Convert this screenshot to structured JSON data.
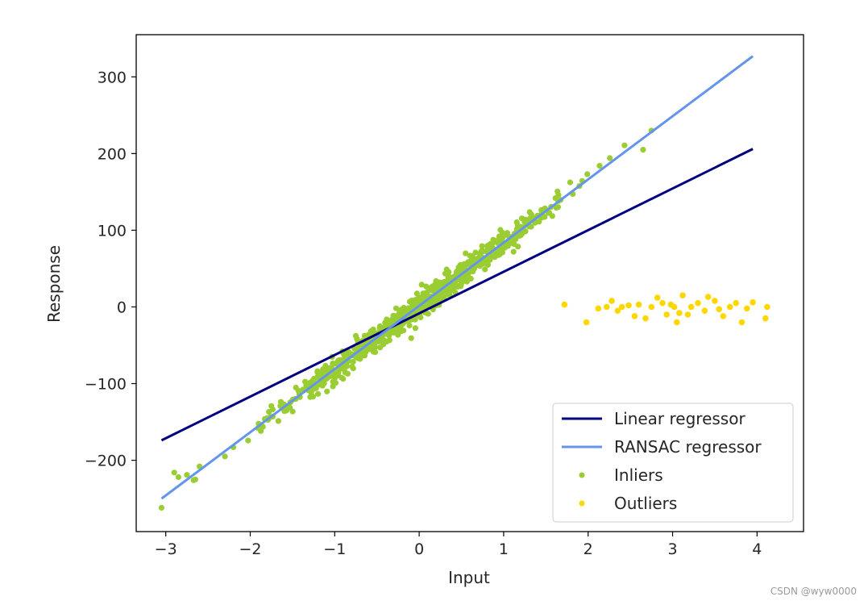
{
  "chart_data": {
    "type": "scatter",
    "title": "",
    "xlabel": "Input",
    "ylabel": "Response",
    "xlim": [
      -3.35,
      4.55
    ],
    "ylim": [
      -293,
      355
    ],
    "xticks": [
      -3,
      -2,
      -1,
      0,
      1,
      2,
      3,
      4
    ],
    "yticks": [
      -200,
      -100,
      0,
      100,
      200,
      300
    ],
    "xtick_labels": [
      "−3",
      "−2",
      "−1",
      "0",
      "1",
      "2",
      "3",
      "4"
    ],
    "ytick_labels": [
      "−200",
      "−100",
      "0",
      "100",
      "200",
      "300"
    ],
    "grid": false,
    "legend_position": "lower right",
    "colors": {
      "linear": "#000080",
      "ransac": "#6495ed",
      "inliers": "#9acd32",
      "outliers": "#ffd700"
    },
    "series": [
      {
        "name": "Linear regressor",
        "kind": "line",
        "x": [
          -3.05,
          3.95
        ],
        "y": [
          -174,
          206
        ]
      },
      {
        "name": "RANSAC regressor",
        "kind": "line",
        "x": [
          -3.05,
          3.95
        ],
        "y": [
          -250,
          327
        ]
      },
      {
        "name": "Inliers",
        "kind": "scatter",
        "x": [],
        "y": []
      },
      {
        "name": "Outliers",
        "kind": "scatter",
        "x": [
          1.72,
          1.98,
          2.12,
          2.22,
          2.28,
          2.35,
          2.4,
          2.48,
          2.55,
          2.6,
          2.68,
          2.75,
          2.82,
          2.88,
          2.93,
          2.98,
          3.02,
          3.05,
          3.08,
          3.12,
          3.18,
          3.22,
          3.3,
          3.38,
          3.42,
          3.5,
          3.55,
          3.6,
          3.68,
          3.75,
          3.82,
          3.88,
          3.95,
          4.1,
          4.12
        ],
        "y": [
          3,
          -20,
          -2,
          0,
          8,
          -5,
          0,
          2,
          -12,
          3,
          -15,
          0,
          12,
          5,
          -10,
          3,
          0,
          -20,
          -8,
          15,
          -10,
          0,
          5,
          -5,
          13,
          8,
          -3,
          -12,
          0,
          5,
          -20,
          -2,
          6,
          -15,
          0
        ]
      }
    ]
  },
  "footer": {
    "watermark": "CSDN @wyw0000"
  }
}
